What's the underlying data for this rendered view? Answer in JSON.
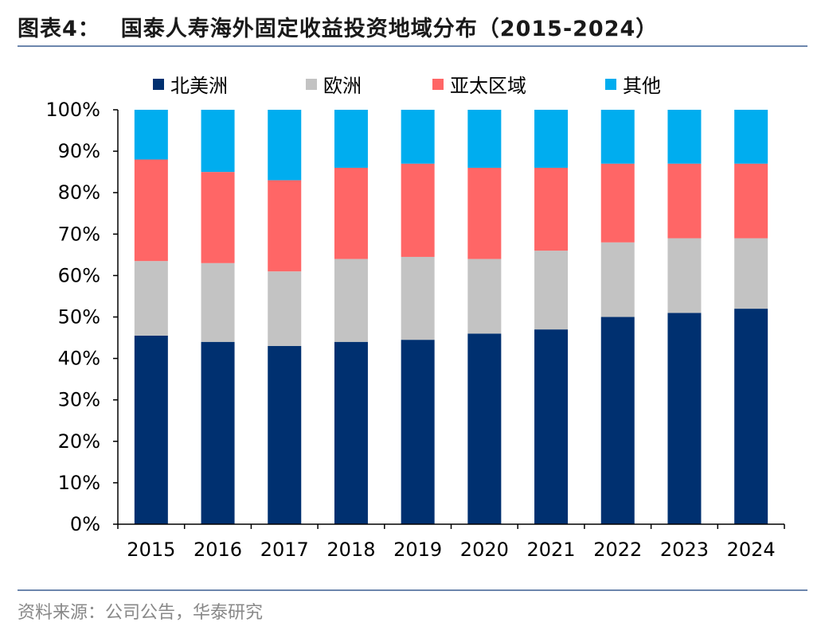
{
  "header": {
    "label": "图表4：",
    "title": "国泰人寿海外固定收益投资地域分布（2015-2024）"
  },
  "footer": {
    "source": "资料来源：公司公告，华泰研究"
  },
  "chart_data": {
    "type": "bar",
    "stacked": true,
    "title": "国泰人寿海外固定收益投资地域分布（2015-2024）",
    "xlabel": "",
    "ylabel": "",
    "ylim": [
      0,
      100
    ],
    "yticks": [
      "0%",
      "10%",
      "20%",
      "30%",
      "40%",
      "50%",
      "60%",
      "70%",
      "80%",
      "90%",
      "100%"
    ],
    "legend_position": "top",
    "categories": [
      "2015",
      "2016",
      "2017",
      "2018",
      "2019",
      "2020",
      "2021",
      "2022",
      "2023",
      "2024"
    ],
    "series": [
      {
        "name": "北美洲",
        "color": "#003070",
        "values": [
          45.5,
          44,
          43,
          44,
          44.5,
          46,
          47,
          50,
          51,
          52
        ]
      },
      {
        "name": "欧洲",
        "color": "#c3c3c3",
        "values": [
          18,
          19,
          18,
          20,
          20,
          18,
          19,
          18,
          18,
          17
        ]
      },
      {
        "name": "亚太区域",
        "color": "#ff6666",
        "values": [
          24.5,
          22,
          22,
          22,
          22.5,
          22,
          20,
          19,
          18,
          18
        ]
      },
      {
        "name": "其他",
        "color": "#00adef",
        "values": [
          12,
          15,
          17,
          14,
          13,
          14,
          14,
          13,
          13,
          13
        ]
      }
    ]
  }
}
